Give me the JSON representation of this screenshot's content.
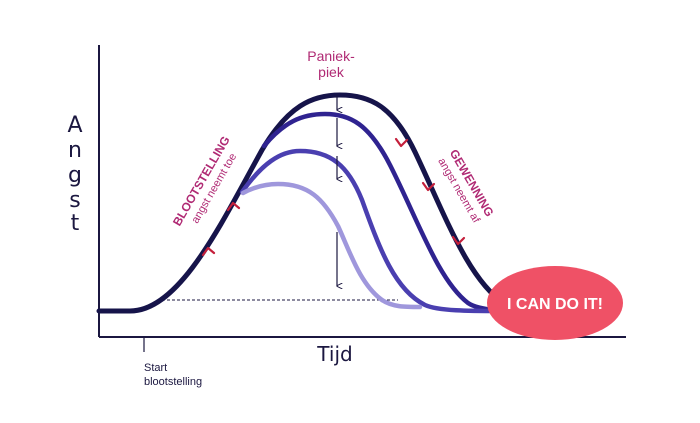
{
  "y_axis_label": [
    "A",
    "n",
    "g",
    "s",
    "t"
  ],
  "x_axis_label": "Tijd",
  "start_label": [
    "Start",
    "blootstelling"
  ],
  "peak_label": [
    "Paniek-",
    "piek"
  ],
  "left_annotation": {
    "title": "BLOOTSTELLING",
    "subtitle": "angst neemt toe"
  },
  "right_annotation": {
    "title": "GEWENNING",
    "subtitle": "angst neemt af"
  },
  "badge": {
    "text": "I CAN DO IT!"
  },
  "colors": {
    "curve_1": "#16144a",
    "curve_2": "#2f2390",
    "curve_3": "#4a3fb0",
    "curve_4": "#9f97dc",
    "arrowhead": "#c41f3b",
    "label_magenta": "#b02a74",
    "badge_fill": "#ef5166",
    "axis": "#1b1740"
  }
}
